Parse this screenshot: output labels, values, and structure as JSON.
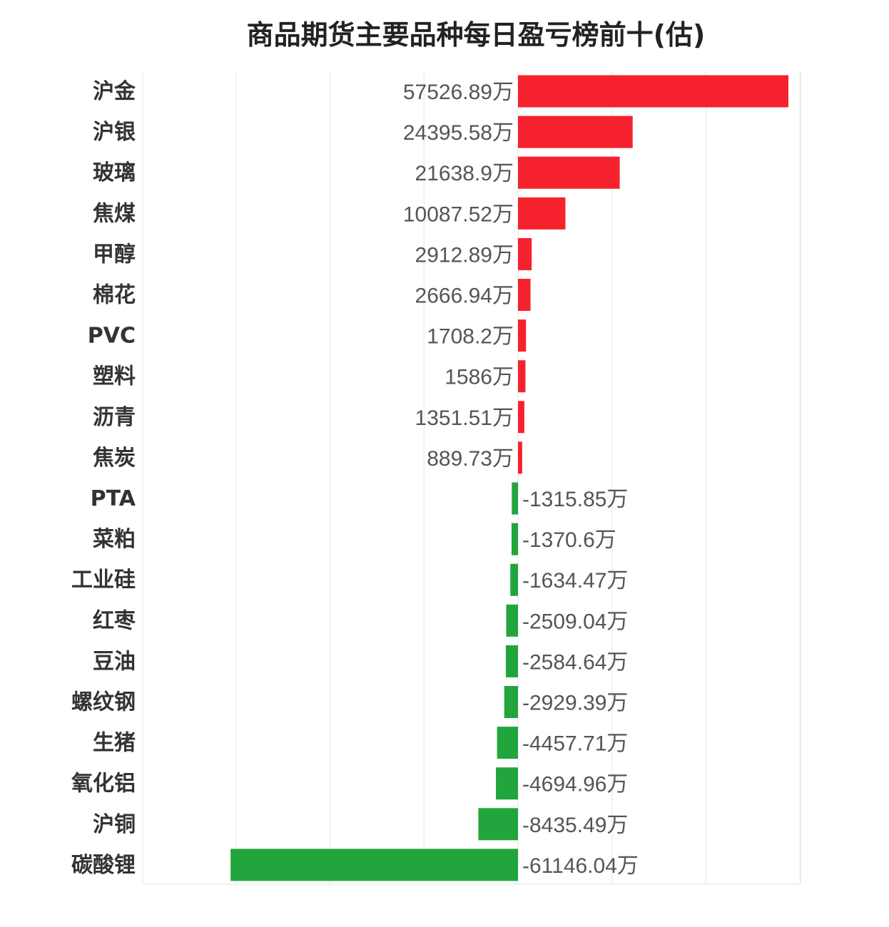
{
  "chart_data": {
    "type": "bar",
    "orientation": "horizontal",
    "title": "商品期货主要品种每日盈亏榜前十(估)",
    "unit": "万",
    "grid": true,
    "categories": [
      "沪金",
      "沪银",
      "玻璃",
      "焦煤",
      "甲醇",
      "棉花",
      "PVC",
      "塑料",
      "沥青",
      "焦炭",
      "PTA",
      "菜粕",
      "工业硅",
      "红枣",
      "豆油",
      "螺纹钢",
      "生猪",
      "氧化铝",
      "沪铜",
      "碳酸锂"
    ],
    "values": [
      57526.89,
      24395.58,
      21638.9,
      10087.52,
      2912.89,
      2666.94,
      1708.2,
      1586,
      1351.51,
      889.73,
      -1315.85,
      -1370.6,
      -1634.47,
      -2509.04,
      -2584.64,
      -2929.39,
      -4457.71,
      -4694.96,
      -8435.49,
      -61146.04
    ],
    "value_labels": [
      "57526.89万",
      "24395.58万",
      "21638.9万",
      "10087.52万",
      "2912.89万",
      "2666.94万",
      "1708.2万",
      "1586万",
      "1351.51万",
      "889.73万",
      "-1315.85万",
      "-1370.6万",
      "-1634.47万",
      "-2509.04万",
      "-2584.64万",
      "-2929.39万",
      "-4457.71万",
      "-4694.96万",
      "-8435.49万",
      "-61146.04万"
    ],
    "xlim": [
      -80000,
      60000
    ],
    "colors": {
      "positive": "#f5222d",
      "negative": "#22a53d",
      "grid": "#e6e6e6"
    }
  }
}
